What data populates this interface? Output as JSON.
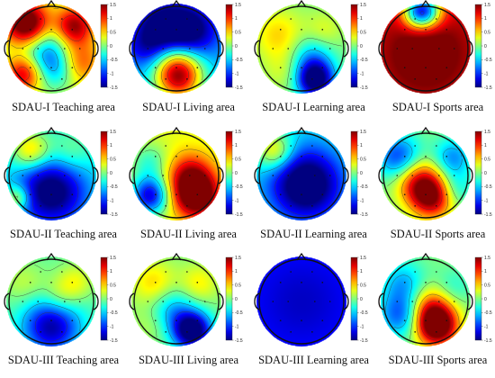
{
  "chart_data": {
    "type": "heatmap",
    "colorbar": {
      "ticks": [
        "1.5",
        "1",
        "0.5",
        "0",
        "-0.5",
        "-1",
        "-1.5"
      ],
      "range": [
        -1.5,
        1.5
      ],
      "colormap": "jet"
    },
    "panels": [
      {
        "caption": "SDAU-I  Teaching area",
        "blobs": [
          [
            -0.55,
            -0.55,
            0.35,
            1.8
          ],
          [
            0.5,
            -0.5,
            0.3,
            1.3
          ],
          [
            -0.6,
            0.55,
            0.3,
            1.3
          ],
          [
            0.55,
            0.3,
            0.35,
            1.0
          ],
          [
            -0.1,
            0.15,
            0.45,
            -1.1
          ],
          [
            0.25,
            0.45,
            0.3,
            -0.5
          ]
        ],
        "base": 0.2
      },
      {
        "caption": "SDAU-I  Living area",
        "blobs": [
          [
            0.05,
            0.65,
            0.38,
            1.7
          ],
          [
            0.0,
            0.3,
            0.35,
            0.6
          ],
          [
            -0.3,
            -0.45,
            0.45,
            -1.1
          ],
          [
            0.35,
            -0.4,
            0.4,
            -0.9
          ],
          [
            -0.7,
            0.0,
            0.3,
            -0.4
          ]
        ],
        "base": -0.6
      },
      {
        "caption": "SDAU-I  Learning area",
        "blobs": [
          [
            0.3,
            0.7,
            0.3,
            -1.7
          ],
          [
            0.2,
            0.2,
            0.35,
            -0.6
          ],
          [
            -0.5,
            -0.3,
            0.4,
            0.5
          ],
          [
            0.5,
            -0.4,
            0.3,
            0.3
          ],
          [
            -0.3,
            0.5,
            0.35,
            0.3
          ]
        ],
        "base": 0.0
      },
      {
        "caption": "SDAU-I  Sports area",
        "blobs": [
          [
            0.0,
            -0.85,
            0.28,
            -1.6
          ],
          [
            -0.2,
            -0.8,
            0.25,
            -1.0
          ],
          [
            0.0,
            0.1,
            0.6,
            0.6
          ]
        ],
        "base": 1.2
      },
      {
        "caption": "SDAU-II  Teaching area",
        "blobs": [
          [
            0.0,
            0.35,
            0.55,
            -1.4
          ],
          [
            -0.45,
            -0.55,
            0.3,
            0.9
          ],
          [
            0.4,
            -0.5,
            0.35,
            0.4
          ],
          [
            -0.75,
            0.5,
            0.2,
            0.8
          ]
        ],
        "base": -0.3
      },
      {
        "caption": "SDAU-II  Living area",
        "blobs": [
          [
            0.45,
            0.45,
            0.35,
            1.6
          ],
          [
            0.3,
            0.0,
            0.35,
            0.9
          ],
          [
            -0.6,
            0.45,
            0.3,
            -1.5
          ],
          [
            -0.6,
            -0.3,
            0.3,
            -0.5
          ]
        ],
        "base": 0.3
      },
      {
        "caption": "SDAU-II  Learning area",
        "blobs": [
          [
            0.1,
            0.2,
            0.55,
            -1.5
          ],
          [
            -0.6,
            -0.55,
            0.3,
            0.9
          ],
          [
            0.6,
            -0.5,
            0.25,
            0.0
          ]
        ],
        "base": -0.4
      },
      {
        "caption": "SDAU-II  Sports area",
        "blobs": [
          [
            0.15,
            0.45,
            0.35,
            1.6
          ],
          [
            -0.2,
            0.1,
            0.35,
            0.9
          ],
          [
            -0.6,
            -0.4,
            0.35,
            -1.0
          ],
          [
            0.6,
            -0.4,
            0.3,
            -0.7
          ],
          [
            0.6,
            0.3,
            0.3,
            -0.6
          ]
        ],
        "base": 0.0
      },
      {
        "caption": "SDAU-III  Teaching area",
        "blobs": [
          [
            0.0,
            0.55,
            0.45,
            -1.3
          ],
          [
            0.2,
            -0.1,
            0.3,
            0.4
          ],
          [
            -0.6,
            -0.4,
            0.35,
            0.3
          ],
          [
            0.55,
            -0.45,
            0.3,
            0.4
          ]
        ],
        "base": -0.1
      },
      {
        "caption": "SDAU-III  Living area",
        "blobs": [
          [
            0.35,
            0.65,
            0.3,
            -1.8
          ],
          [
            -0.1,
            0.2,
            0.35,
            -0.6
          ],
          [
            -0.5,
            -0.4,
            0.35,
            0.5
          ],
          [
            0.5,
            -0.4,
            0.3,
            0.4
          ],
          [
            -0.55,
            0.5,
            0.3,
            0.2
          ]
        ],
        "base": 0.0
      },
      {
        "caption": "SDAU-III  Learning area",
        "blobs": [
          [
            0.0,
            0.0,
            0.8,
            -0.3
          ]
        ],
        "base": -1.0
      },
      {
        "caption": "SDAU-III  Sports area",
        "blobs": [
          [
            0.25,
            0.55,
            0.32,
            1.8
          ],
          [
            0.1,
            0.15,
            0.35,
            0.9
          ],
          [
            -0.55,
            0.3,
            0.35,
            -0.9
          ],
          [
            -0.5,
            -0.4,
            0.35,
            -0.6
          ],
          [
            0.6,
            -0.3,
            0.3,
            -0.3
          ]
        ],
        "base": 0.0
      }
    ]
  }
}
